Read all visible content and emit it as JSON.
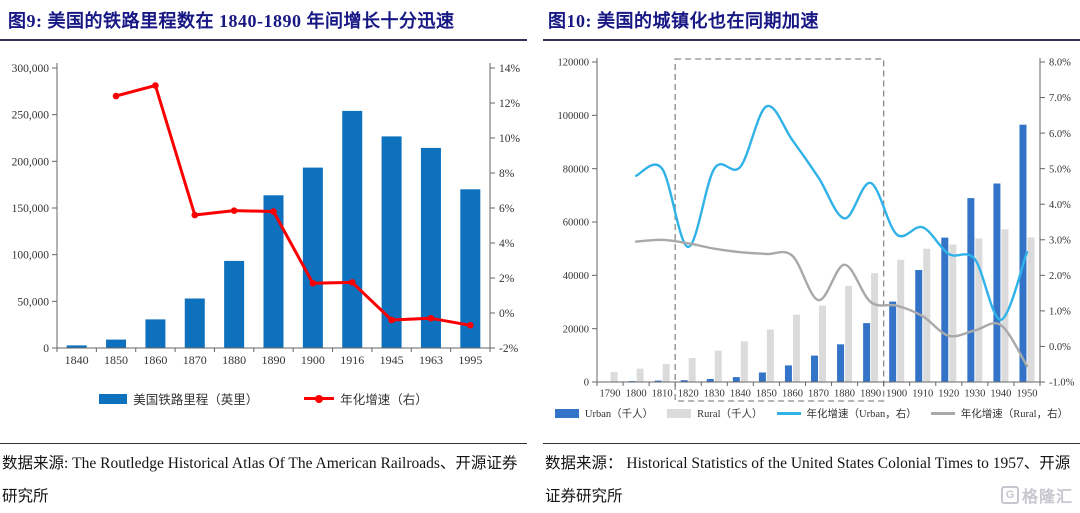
{
  "figures": {
    "fig9": {
      "title": "图9:  美国的铁路里程数在 1840-1890 年间增长十分迅速",
      "source": "数据来源: The Routledge Historical Atlas Of The American Railroads、开源证券研究所"
    },
    "fig10": {
      "title": "图10:  美国的城镇化也在同期加速",
      "source": "数据来源：  Historical Statistics of the United States Colonial Times to 1957、开源证券研究所"
    }
  },
  "watermark": {
    "icon": "G",
    "text": "格隆汇"
  },
  "chart_data": [
    {
      "type": "bar",
      "title": "图9:  美国的铁路里程数在 1840-1890 年间增长十分迅速",
      "categories": [
        "1840",
        "1850",
        "1860",
        "1870",
        "1880",
        "1890",
        "1900",
        "1916",
        "1945",
        "1963",
        "1995"
      ],
      "series": [
        {
          "name": "美国铁路里程（英里）",
          "type": "bar",
          "axis": "left",
          "color": "#0E71BD",
          "values": [
            2800,
            9000,
            30600,
            53000,
            93300,
            163600,
            193300,
            254000,
            226700,
            214400,
            170000
          ]
        },
        {
          "name": "年化增速（右）",
          "type": "line",
          "axis": "right",
          "color": "#FA0000",
          "marker": true,
          "smooth": false,
          "width": 3,
          "values": [
            null,
            12.4,
            13.0,
            5.6,
            5.85,
            5.8,
            1.7,
            1.75,
            -0.4,
            -0.3,
            -0.7
          ]
        }
      ],
      "y_left": {
        "min": 0,
        "max": 300000,
        "step": 50000,
        "format": "comma"
      },
      "y_right": {
        "min": -2,
        "max": 14,
        "step": 2,
        "format": "pct0"
      },
      "grid": false,
      "legend_position": "bottom"
    },
    {
      "type": "bar",
      "title": "图10:  美国的城镇化也在同期加速",
      "categories": [
        "1790",
        "1800",
        "1810",
        "1820",
        "1830",
        "1840",
        "1850",
        "1860",
        "1870",
        "1880",
        "1890",
        "1900",
        "1910",
        "1920",
        "1930",
        "1940",
        "1950"
      ],
      "series": [
        {
          "name": "Urban（千人）",
          "type": "bar",
          "axis": "left",
          "color": "#3474C8",
          "values": [
            202,
            322,
            525,
            693,
            1127,
            1845,
            3544,
            6217,
            9902,
            14130,
            22106,
            30160,
            42000,
            54160,
            68955,
            74424,
            96470
          ]
        },
        {
          "name": "Rural（千人）",
          "type": "bar",
          "axis": "left",
          "color": "#DBDBDB",
          "values": [
            3728,
            4986,
            6714,
            8945,
            11734,
            15218,
            19648,
            25227,
            28656,
            36026,
            40841,
            45835,
            49973,
            51553,
            53820,
            57246,
            54230
          ]
        },
        {
          "name": "年化增速（Urban，右）",
          "type": "line",
          "axis": "right",
          "color": "#30B2E8",
          "marker": false,
          "smooth": true,
          "width": 2.4,
          "values": [
            null,
            4.8,
            5.0,
            2.8,
            5.0,
            5.05,
            6.75,
            5.8,
            4.75,
            3.6,
            4.6,
            3.15,
            3.35,
            2.6,
            2.45,
            0.75,
            2.65
          ]
        },
        {
          "name": "年化增速（Rural，右）",
          "type": "line",
          "axis": "right",
          "color": "#A9A9A9",
          "marker": false,
          "smooth": true,
          "width": 2.4,
          "values": [
            null,
            2.95,
            3.0,
            2.9,
            2.75,
            2.65,
            2.6,
            2.55,
            1.3,
            2.3,
            1.25,
            1.15,
            0.85,
            0.3,
            0.45,
            0.6,
            -0.55
          ]
        }
      ],
      "y_left": {
        "min": 0,
        "max": 120000,
        "step": 20000,
        "format": "plain"
      },
      "y_right": {
        "min": -1,
        "max": 8,
        "step": 1,
        "format": "pct1"
      },
      "highlight_box": {
        "from": "1820",
        "to": "1890"
      },
      "grid": false,
      "legend_position": "bottom"
    }
  ]
}
